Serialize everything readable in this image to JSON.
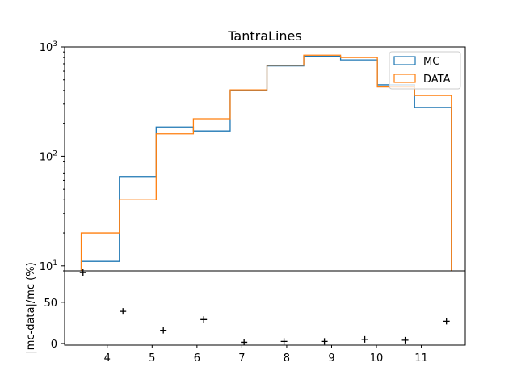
{
  "chart_data": [
    {
      "type": "histogram",
      "title": "TantraLines",
      "xlabel": "",
      "ylabel": "",
      "yscale": "log",
      "ylim": [
        9,
        1000
      ],
      "xlim": [
        3.05,
        11.98
      ],
      "bin_edges": [
        3.42,
        4.27,
        5.09,
        5.92,
        6.74,
        7.56,
        8.38,
        9.2,
        10.02,
        10.85,
        11.67
      ],
      "series": [
        {
          "name": "MC",
          "color": "#1f77b4",
          "values": [
            11,
            65,
            185,
            170,
            400,
            670,
            820,
            760,
            450,
            280
          ]
        },
        {
          "name": "DATA",
          "color": "#ff7f0e",
          "values": [
            20,
            40,
            160,
            220,
            405,
            680,
            840,
            800,
            430,
            360
          ]
        }
      ],
      "yticks": [
        {
          "value": 10,
          "base": "10",
          "exp": "1"
        },
        {
          "value": 100,
          "base": "10",
          "exp": "2"
        },
        {
          "value": 1000,
          "base": "10",
          "exp": "3"
        }
      ],
      "legend": {
        "location": "upper-right"
      }
    },
    {
      "type": "scatter",
      "ylabel": "|mc-data|/mc (%)",
      "marker": "+",
      "ylim": [
        -2,
        88
      ],
      "x": [
        3.46,
        4.35,
        5.25,
        6.15,
        7.05,
        7.94,
        8.84,
        9.74,
        10.64,
        11.56
      ],
      "y": [
        86,
        39,
        16,
        29,
        1.5,
        2.5,
        2.5,
        5,
        4,
        27
      ],
      "xticks": [
        4,
        5,
        6,
        7,
        8,
        9,
        10,
        11
      ],
      "xtick_labels": [
        "4",
        "5",
        "6",
        "7",
        "8",
        "9",
        "10",
        "11"
      ],
      "yticks": [
        0,
        50
      ],
      "ytick_labels": [
        "0",
        "50"
      ]
    }
  ]
}
